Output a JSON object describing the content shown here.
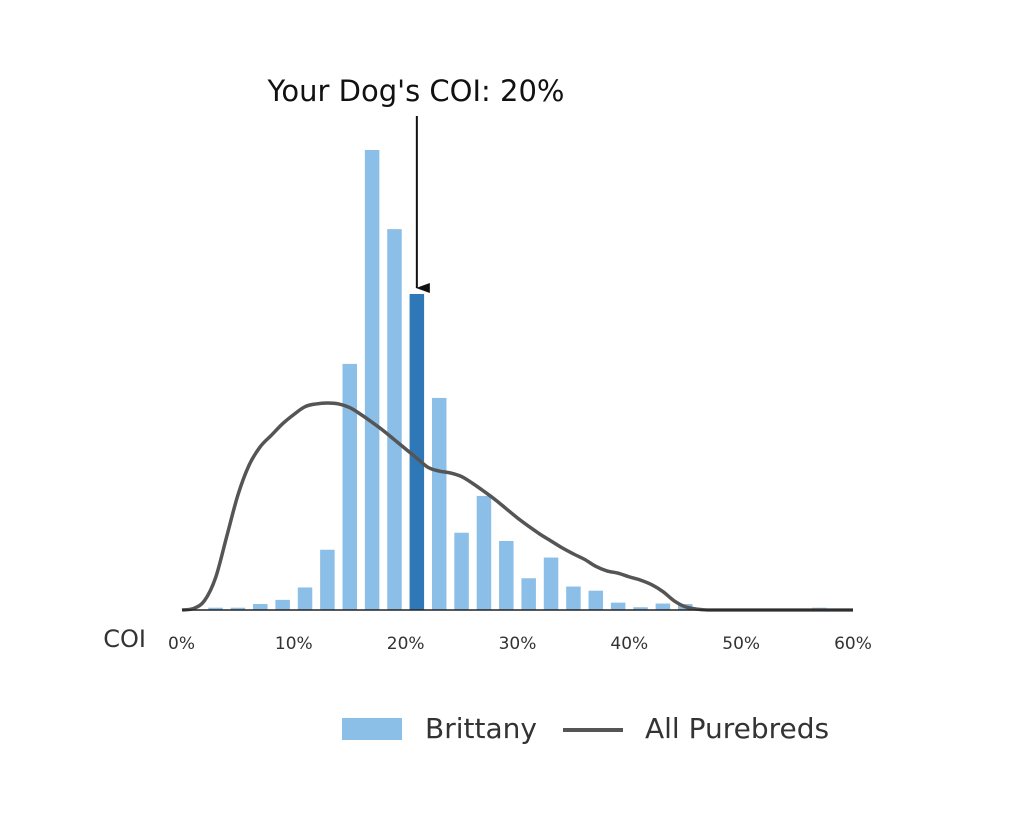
{
  "chart_data": {
    "type": "bar",
    "xlabel": "COI",
    "ylabel": "",
    "xlim": [
      0,
      60
    ],
    "ylim": [
      0,
      100
    ],
    "x_ticks": [
      0,
      10,
      20,
      30,
      40,
      50,
      60
    ],
    "x_tick_labels": [
      "0%",
      "10%",
      "20%",
      "30%",
      "40%",
      "50%",
      "60%"
    ],
    "grid": false,
    "legend_position": "bottom",
    "annotation": {
      "text": "Your Dog's COI: 20%",
      "x": 21,
      "highlight_bin": 21
    },
    "series": [
      {
        "name": "Brittany",
        "kind": "bar",
        "color": "#8bbfe8",
        "highlight_color": "#2e78b7",
        "x": [
          3,
          5,
          7,
          9,
          11,
          13,
          15,
          17,
          19,
          21,
          23,
          25,
          27,
          29,
          31,
          33,
          35,
          37,
          39,
          41,
          43,
          45,
          57
        ],
        "values": [
          0.5,
          0.5,
          1.3,
          2.2,
          4.9,
          13.1,
          53.5,
          100,
          82.8,
          68.7,
          46.1,
          16.8,
          24.8,
          15,
          6.9,
          11.4,
          5.1,
          4.2,
          1.6,
          0.6,
          1.4,
          1.3,
          0.5
        ]
      },
      {
        "name": "All Purebreds",
        "kind": "line",
        "color": "#555555",
        "x": [
          0,
          1,
          2,
          3,
          4,
          5,
          6,
          7,
          8,
          9,
          10,
          11,
          12,
          13,
          14,
          15,
          16,
          17,
          18,
          19,
          20,
          21,
          22,
          23,
          24,
          25,
          26,
          27,
          28,
          29,
          30,
          31,
          32,
          33,
          34,
          35,
          36,
          37,
          38,
          39,
          40,
          41,
          42,
          43,
          44,
          45,
          46,
          47,
          48,
          49,
          50,
          55,
          60
        ],
        "values": [
          0,
          0.3,
          2,
          7,
          16,
          25,
          31.5,
          35.5,
          38,
          40.5,
          42.5,
          44.2,
          44.8,
          45,
          44.8,
          44,
          42.5,
          40.8,
          39,
          37,
          35,
          33,
          31,
          30.2,
          29.8,
          29,
          27.5,
          25.8,
          24,
          22,
          20,
          18.2,
          16.5,
          15,
          13.5,
          12.2,
          11,
          9.5,
          8.5,
          8,
          7.2,
          6.5,
          5.5,
          4,
          2,
          0.7,
          0.2,
          0,
          0,
          0,
          0,
          0,
          0
        ]
      }
    ]
  }
}
